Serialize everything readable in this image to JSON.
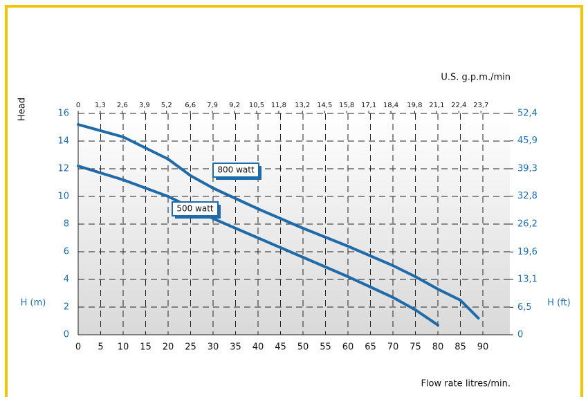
{
  "chart_data": {
    "type": "line",
    "y_label": "Head",
    "x2_label": "U.S. g.p.m./min",
    "y_unit_label": "H (m)",
    "y2_unit_label": "H (ft)",
    "x_label": "Flow rate litres/min.",
    "xlim": [
      0,
      96
    ],
    "xticks": [
      0,
      5,
      10,
      15,
      20,
      25,
      30,
      35,
      40,
      45,
      50,
      55,
      60,
      65,
      70,
      75,
      80,
      85,
      90
    ],
    "x2lim": [
      0,
      25.4
    ],
    "x2ticks": [
      0,
      {
        "value": 1.3,
        "label": "1,3"
      },
      {
        "value": 2.6,
        "label": "2,6"
      },
      {
        "value": 3.9,
        "label": "3,9"
      },
      {
        "value": 5.2,
        "label": "5,2"
      },
      {
        "value": 6.6,
        "label": "6,6"
      },
      {
        "value": 7.9,
        "label": "7,9"
      },
      {
        "value": 9.2,
        "label": "9,2"
      },
      {
        "value": 10.5,
        "label": "10,5"
      },
      {
        "value": 11.8,
        "label": "11,8"
      },
      {
        "value": 13.2,
        "label": "13,2"
      },
      {
        "value": 14.5,
        "label": "14,5"
      },
      {
        "value": 15.8,
        "label": "15,8"
      },
      {
        "value": 17.1,
        "label": "17,1"
      },
      {
        "value": 18.4,
        "label": "18,4"
      },
      {
        "value": 19.8,
        "label": "19,8"
      },
      {
        "value": 21.1,
        "label": "21,1"
      },
      {
        "value": 22.4,
        "label": "22,4"
      },
      {
        "value": 23.7,
        "label": "23,7"
      }
    ],
    "ylim": [
      0,
      16
    ],
    "yticks": [
      0,
      2,
      4,
      6,
      8,
      10,
      12,
      14,
      16
    ],
    "y2lim": [
      0,
      52.4
    ],
    "y2ticks": [
      0,
      {
        "value": 6.5,
        "label": "6,5"
      },
      {
        "value": 13.1,
        "label": "13,1"
      },
      {
        "value": 19.6,
        "label": "19,6"
      },
      {
        "value": 26.2,
        "label": "26,2"
      },
      {
        "value": 32.8,
        "label": "32,8"
      },
      {
        "value": 39.3,
        "label": "39,3"
      },
      {
        "value": 45.9,
        "label": "45,9"
      },
      {
        "value": 52.4,
        "label": "52,4"
      }
    ],
    "grid": true,
    "series": [
      {
        "name": "800 watt",
        "color": "#1f6aa8",
        "x": [
          0,
          10,
          20,
          25,
          30,
          40,
          50,
          60,
          70,
          75,
          80,
          85,
          89
        ],
        "values": [
          15.2,
          14.3,
          12.7,
          11.5,
          10.6,
          9.1,
          7.7,
          6.4,
          5.0,
          4.2,
          3.3,
          2.5,
          1.2
        ]
      },
      {
        "name": "500 watt",
        "color": "#1f6aa8",
        "x": [
          0,
          10,
          20,
          30,
          40,
          50,
          60,
          70,
          75,
          80
        ],
        "values": [
          12.2,
          11.2,
          10.0,
          8.4,
          7.0,
          5.6,
          4.2,
          2.7,
          1.8,
          0.7
        ]
      }
    ]
  }
}
